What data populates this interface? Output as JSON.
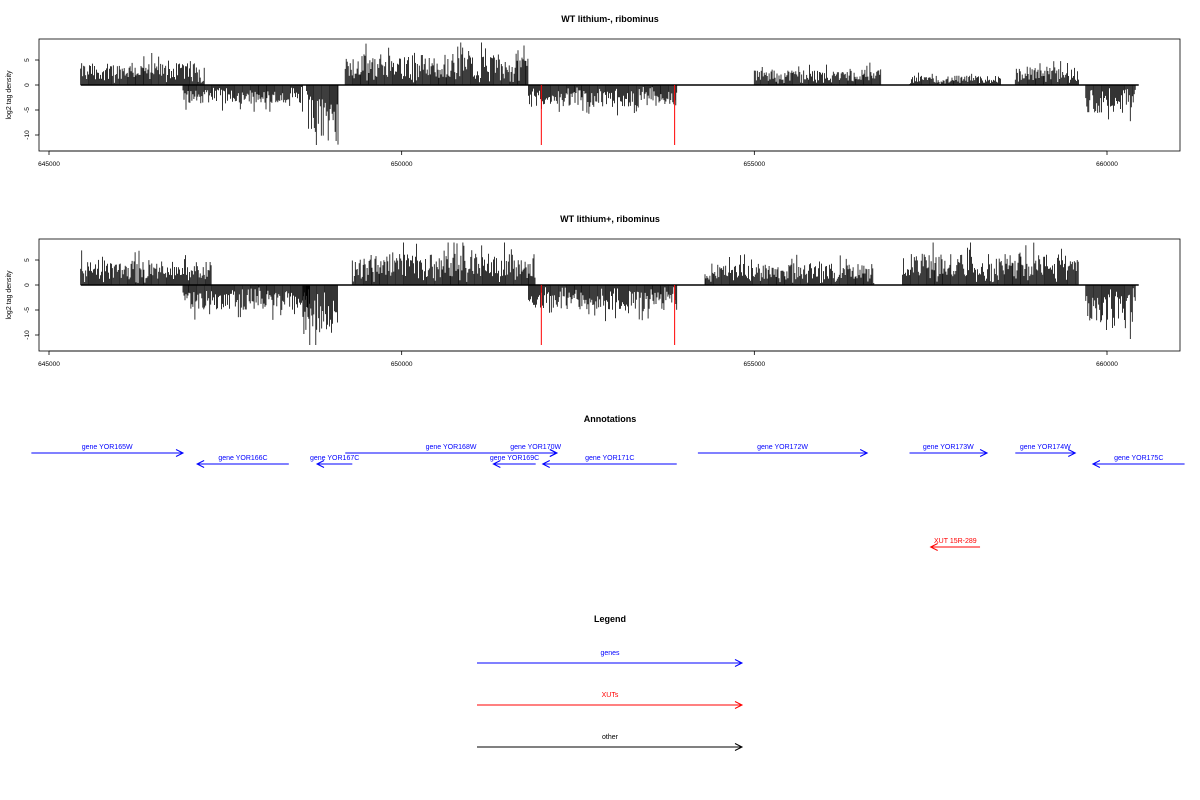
{
  "chart_data": [
    {
      "type": "bar",
      "title": "WT lithium-, ribominus",
      "ylabel": "log2 tag density",
      "xlim": [
        645000,
        661000
      ],
      "ylim": [
        -12,
        9
      ],
      "xticks": [
        "645000",
        "650000",
        "655000",
        "660000"
      ],
      "yticks": [
        "5",
        "0",
        "-5",
        "-10"
      ],
      "profile_segments": [
        {
          "strand": "+",
          "start": 645450,
          "end": 647200,
          "level": 3.5
        },
        {
          "strand": "-",
          "start": 646900,
          "end": 648600,
          "level": -3
        },
        {
          "strand": "-",
          "start": 648650,
          "end": 649100,
          "level": -10
        },
        {
          "strand": "+",
          "start": 649200,
          "end": 651800,
          "level": 5
        },
        {
          "strand": "-",
          "start": 651800,
          "end": 653900,
          "level": -3.5
        },
        {
          "strand": "+",
          "start": 655000,
          "end": 656800,
          "level": 2.5
        },
        {
          "strand": "+",
          "start": 657200,
          "end": 658500,
          "level": 1.5
        },
        {
          "strand": "+",
          "start": 658700,
          "end": 659600,
          "level": 3
        },
        {
          "strand": "-",
          "start": 659700,
          "end": 660400,
          "level": -4.5
        }
      ],
      "highlight_lines": [
        {
          "x": 651980,
          "y": -12,
          "color": "#ff0000"
        },
        {
          "x": 653870,
          "y": -12,
          "color": "#ff0000"
        }
      ]
    },
    {
      "type": "bar",
      "title": "WT lithium+, ribominus",
      "ylabel": "log2 tag density",
      "xlim": [
        645000,
        661000
      ],
      "ylim": [
        -12,
        9
      ],
      "xticks": [
        "645000",
        "650000",
        "655000",
        "660000"
      ],
      "yticks": [
        "5",
        "0",
        "-5",
        "-10"
      ],
      "profile_segments": [
        {
          "strand": "+",
          "start": 645450,
          "end": 647300,
          "level": 4
        },
        {
          "strand": "-",
          "start": 646900,
          "end": 648700,
          "level": -4
        },
        {
          "strand": "-",
          "start": 648600,
          "end": 649100,
          "level": -8
        },
        {
          "strand": "+",
          "start": 649300,
          "end": 651900,
          "level": 5
        },
        {
          "strand": "-",
          "start": 651800,
          "end": 653900,
          "level": -4
        },
        {
          "strand": "+",
          "start": 654300,
          "end": 656700,
          "level": 3.5
        },
        {
          "strand": "+",
          "start": 657100,
          "end": 659600,
          "level": 5
        },
        {
          "strand": "-",
          "start": 659700,
          "end": 660400,
          "level": -6
        }
      ],
      "highlight_lines": [
        {
          "x": 651980,
          "y": -12,
          "color": "#ff0000"
        },
        {
          "x": 653870,
          "y": -12,
          "color": "#ff0000"
        }
      ]
    }
  ],
  "annotations": {
    "title": "Annotations",
    "items": [
      {
        "label": "gene YOR165W",
        "start": 644750,
        "end": 646900,
        "strand": "+",
        "row": 0,
        "color": "#0000ff"
      },
      {
        "label": "gene YOR166C",
        "start": 647100,
        "end": 648400,
        "strand": "-",
        "row": 1,
        "color": "#0000ff"
      },
      {
        "label": "gene YOR167C",
        "start": 648800,
        "end": 649300,
        "strand": "-",
        "row": 1,
        "color": "#0000ff"
      },
      {
        "label": "gene YOR168W",
        "start": 649200,
        "end": 652200,
        "strand": "+",
        "row": 0,
        "color": "#0000ff"
      },
      {
        "label": "gene YOR169C",
        "start": 651300,
        "end": 651900,
        "strand": "-",
        "row": 1,
        "color": "#0000ff"
      },
      {
        "label": "gene YOR170W",
        "start": 651600,
        "end": 652200,
        "strand": "+",
        "row": 0,
        "color": "#0000ff"
      },
      {
        "label": "gene YOR171C",
        "start": 652000,
        "end": 653900,
        "strand": "-",
        "row": 1,
        "color": "#0000ff"
      },
      {
        "label": "gene YOR172W",
        "start": 654200,
        "end": 656600,
        "strand": "+",
        "row": 0,
        "color": "#0000ff"
      },
      {
        "label": "gene YOR173W",
        "start": 657200,
        "end": 658300,
        "strand": "+",
        "row": 0,
        "color": "#0000ff"
      },
      {
        "label": "gene YOR174W",
        "start": 658700,
        "end": 659550,
        "strand": "+",
        "row": 0,
        "color": "#0000ff"
      },
      {
        "label": "gene YOR175C",
        "start": 659800,
        "end": 661100,
        "strand": "-",
        "row": 1,
        "color": "#0000ff"
      },
      {
        "label": "XUT 15R-289",
        "start": 657500,
        "end": 658200,
        "strand": "-",
        "row": 2,
        "color": "#ff0000"
      }
    ]
  },
  "legend": {
    "title": "Legend",
    "items": [
      {
        "label": "genes",
        "color": "#0000ff"
      },
      {
        "label": "XUTs",
        "color": "#ff0000"
      },
      {
        "label": "other",
        "color": "#000000"
      }
    ]
  }
}
